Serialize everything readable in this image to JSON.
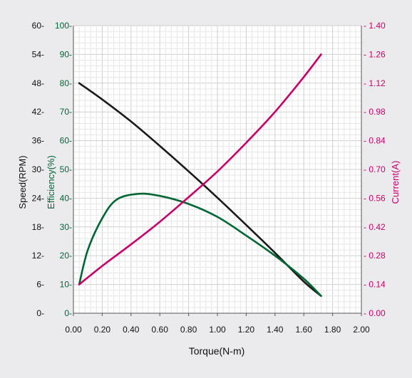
{
  "chart_data": {
    "type": "line",
    "xlabel": "Torque(N-m)",
    "xlim": [
      0,
      2.0
    ],
    "x_ticks": [
      "0.00",
      "0.20",
      "0.40",
      "0.60",
      "0.80",
      "1.00",
      "1.20",
      "1.40",
      "1.60",
      "1.80",
      "2.00"
    ],
    "axes": {
      "speed": {
        "label": "Speed(RPM)",
        "lim": [
          0,
          60
        ],
        "ticks": [
          "0",
          "6",
          "12",
          "18",
          "24",
          "30",
          "36",
          "42",
          "48",
          "54",
          "60"
        ],
        "color": "#111111"
      },
      "efficiency": {
        "label": "Efficiency(%)",
        "lim": [
          0,
          100
        ],
        "ticks": [
          "0",
          "10",
          "20",
          "30",
          "40",
          "50",
          "60",
          "70",
          "80",
          "90",
          "100"
        ],
        "color": "#006633"
      },
      "current": {
        "label": "Current(A)",
        "lim": [
          0,
          1.4
        ],
        "ticks": [
          "0.00",
          "0.14",
          "0.28",
          "0.42",
          "0.56",
          "0.70",
          "0.84",
          "0.98",
          "1.12",
          "1.26",
          "1.40"
        ],
        "color": "#c8006a"
      }
    },
    "grid": true,
    "series": [
      {
        "axis": "speed",
        "color": "#1a1a1a",
        "x": [
          0.04,
          0.2,
          0.4,
          0.6,
          0.8,
          1.0,
          1.2,
          1.4,
          1.6,
          1.72
        ],
        "y": [
          48.0,
          44.6,
          40.0,
          34.9,
          29.6,
          24.1,
          18.4,
          12.6,
          6.6,
          3.6
        ]
      },
      {
        "axis": "efficiency",
        "color": "#006633",
        "x": [
          0.04,
          0.1,
          0.2,
          0.3,
          0.45,
          0.6,
          0.8,
          1.0,
          1.2,
          1.4,
          1.6,
          1.72
        ],
        "y": [
          10,
          22,
          33,
          39.5,
          41.5,
          40.8,
          38,
          33.5,
          27,
          20,
          12,
          6
        ]
      },
      {
        "axis": "current",
        "color": "#c8006a",
        "x": [
          0.04,
          0.2,
          0.4,
          0.6,
          0.8,
          1.0,
          1.2,
          1.4,
          1.6,
          1.72
        ],
        "y": [
          0.14,
          0.23,
          0.335,
          0.445,
          0.565,
          0.69,
          0.83,
          0.98,
          1.15,
          1.26
        ]
      }
    ]
  }
}
